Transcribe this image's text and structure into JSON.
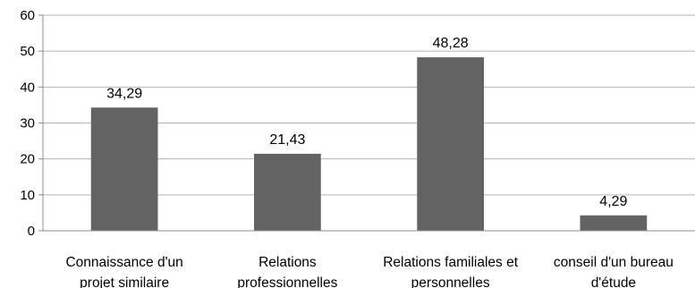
{
  "chart_data": {
    "type": "bar",
    "title": "",
    "xlabel": "",
    "ylabel": "",
    "ylim": [
      0,
      60
    ],
    "yticks": [
      "0",
      "10",
      "20",
      "30",
      "40",
      "50",
      "60"
    ],
    "grid": true,
    "legend": "none",
    "categories": [
      [
        "Connaissance d'un",
        "projet similaire"
      ],
      [
        "Relations",
        "professionnelles"
      ],
      [
        "Relations familiales et",
        "personnelles"
      ],
      [
        "conseil d'un bureau",
        "d'étude"
      ]
    ],
    "values": [
      34.29,
      21.43,
      48.28,
      4.29
    ],
    "data_labels": [
      "34,29",
      "21,43",
      "48,28",
      "4,29"
    ],
    "colors": {
      "bar": "#636363",
      "grid": "#b5b5b5",
      "axis": "#8c8c8c"
    }
  }
}
